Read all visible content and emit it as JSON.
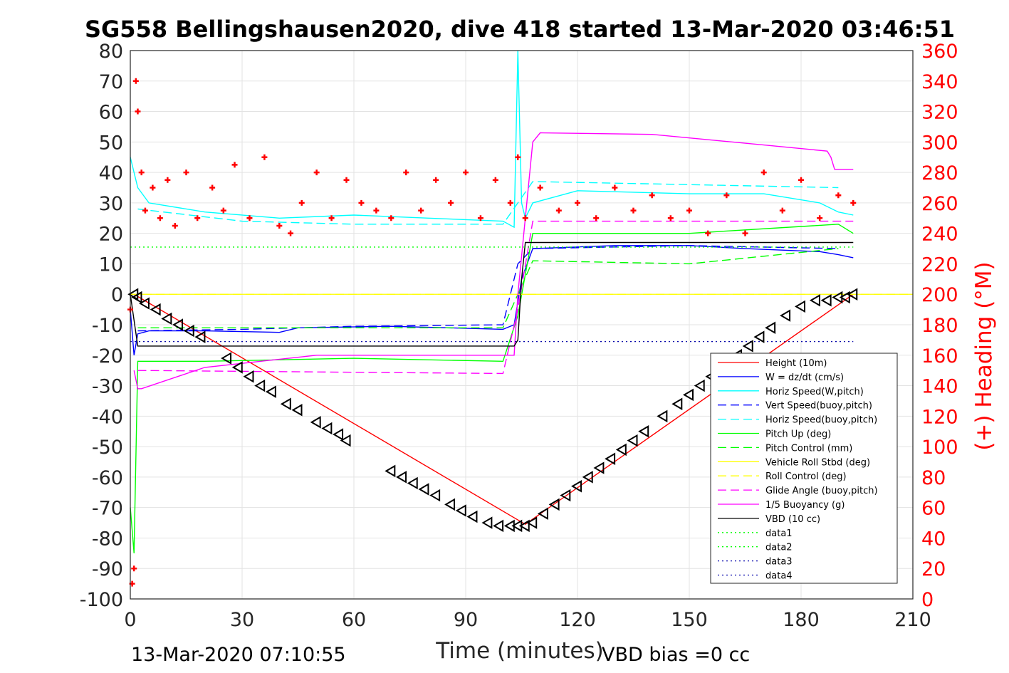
{
  "chart_data": {
    "type": "line",
    "title": "SG558 Bellingshausen2020, dive 418 started 13-Mar-2020 03:46:51",
    "xlabel": "Time (minutes)",
    "ylabel": "",
    "y2label": "(+) Heading (°M)",
    "xlim": [
      0,
      210
    ],
    "ylim": [
      -100,
      80
    ],
    "y2lim": [
      0,
      360
    ],
    "x_ticks": [
      "0",
      "30",
      "60",
      "90",
      "120",
      "150",
      "180",
      "210"
    ],
    "y_ticks": [
      "80",
      "70",
      "60",
      "50",
      "40",
      "30",
      "20",
      "10",
      "0",
      "-10",
      "-20",
      "-30",
      "-40",
      "-50",
      "-60",
      "-70",
      "-80",
      "-90",
      "-100"
    ],
    "y2_ticks": [
      "360",
      "340",
      "320",
      "300",
      "280",
      "260",
      "240",
      "220",
      "200",
      "180",
      "160",
      "140",
      "120",
      "100",
      "80",
      "60",
      "40",
      "20",
      "0"
    ],
    "grid": true,
    "legend_position": "bottom-right",
    "footer_left": "13-Mar-2020 07:10:55",
    "footer_right": "VBD bias =0 cc",
    "colors": {
      "height": "#ff0000",
      "w": "#0000ff",
      "horiz_w": "#00ffff",
      "pitch": "#00ff00",
      "roll": "#ffff00",
      "glide": "#ff00ff",
      "vbd": "#000000",
      "heading": "#ff0000",
      "data": "#00ff00",
      "data_blue": "#0000aa"
    },
    "legend": [
      {
        "label": "Height (10m)",
        "color": "#ff0000",
        "dash": ""
      },
      {
        "label": "W = dz/dt (cm/s)",
        "color": "#0000ff",
        "dash": ""
      },
      {
        "label": "Horiz Speed(W,pitch)",
        "color": "#00ffff",
        "dash": ""
      },
      {
        "label": "Vert Speed(buoy,pitch)",
        "color": "#0000ff",
        "dash": "12,6"
      },
      {
        "label": "Horiz Speed(buoy,pitch)",
        "color": "#00ffff",
        "dash": "12,6"
      },
      {
        "label": "Pitch Up (deg)",
        "color": "#00ff00",
        "dash": ""
      },
      {
        "label": "Pitch Control (mm)",
        "color": "#00ff00",
        "dash": "12,6"
      },
      {
        "label": "Vehicle Roll Stbd (deg)",
        "color": "#ffff00",
        "dash": ""
      },
      {
        "label": "Roll Control (deg)",
        "color": "#ffff00",
        "dash": "12,6"
      },
      {
        "label": "Glide Angle (buoy,pitch)",
        "color": "#ff00ff",
        "dash": "12,6"
      },
      {
        "label": "1/5 Buoyancy (g)",
        "color": "#ff00ff",
        "dash": ""
      },
      {
        "label": "VBD (10 cc)",
        "color": "#000000",
        "dash": ""
      },
      {
        "label": "data1",
        "color": "#00ff00",
        "dash": "2,4"
      },
      {
        "label": "data2",
        "color": "#00ff00",
        "dash": "2,4"
      },
      {
        "label": "data3",
        "color": "#0000aa",
        "dash": "2,4"
      },
      {
        "label": "data4",
        "color": "#0000aa",
        "dash": "2,4"
      }
    ],
    "series": [
      {
        "name": "Height (10m)",
        "x": [
          0,
          1,
          106,
          194
        ],
        "y": [
          0,
          0,
          -75.5,
          0
        ]
      },
      {
        "name": "W = dz/dt (cm/s)",
        "x": [
          0,
          1,
          2,
          5,
          20,
          40,
          45,
          70,
          100,
          103,
          105,
          108,
          130,
          150,
          165,
          185,
          190,
          194
        ],
        "y": [
          -5,
          -20,
          -13,
          -12,
          -12,
          -12.5,
          -11,
          -10.5,
          -11.5,
          -10,
          5,
          15,
          16,
          16,
          15,
          14,
          13,
          12
        ]
      },
      {
        "name": "Horiz Speed(W,pitch)",
        "x": [
          0,
          2,
          5,
          20,
          40,
          60,
          80,
          100,
          103,
          104,
          105,
          106,
          108,
          120,
          150,
          170,
          185,
          190,
          194
        ],
        "y": [
          45,
          35,
          30,
          27,
          25,
          26,
          25,
          24,
          22,
          80,
          30,
          25,
          30,
          34,
          33,
          33,
          30,
          27,
          26
        ]
      },
      {
        "name": "Vert Speed(buoy,pitch)",
        "x": [
          2,
          30,
          60,
          100,
          104,
          108,
          150,
          190
        ],
        "y": [
          -12,
          -11.5,
          -10.5,
          -10,
          10,
          15,
          16,
          15
        ]
      },
      {
        "name": "Horiz Speed(buoy,pitch)",
        "x": [
          2,
          30,
          60,
          100,
          104,
          108,
          150,
          190
        ],
        "y": [
          28,
          24,
          23,
          23,
          30,
          37,
          36,
          35
        ]
      },
      {
        "name": "Pitch Up (deg)",
        "x": [
          0,
          1,
          2,
          20,
          60,
          100,
          104,
          108,
          150,
          190,
          194
        ],
        "y": [
          -70,
          -85,
          -22,
          -22,
          -21,
          -22,
          -7,
          20,
          20,
          23,
          20
        ]
      },
      {
        "name": "Pitch Control (mm)",
        "x": [
          2,
          100,
          104,
          108,
          150,
          190
        ],
        "y": [
          -11,
          -11,
          0,
          11,
          10,
          15
        ]
      },
      {
        "name": "Vehicle Roll Stbd (deg)",
        "x": [
          0,
          210
        ],
        "y": [
          0,
          0
        ]
      },
      {
        "name": "Roll Control (deg)",
        "x": [
          0,
          210
        ],
        "y": [
          0,
          0
        ]
      },
      {
        "name": "Glide Angle (buoy,pitch)",
        "x": [
          2,
          100,
          104,
          108,
          150,
          190,
          194
        ],
        "y": [
          -25,
          -26,
          -5,
          24,
          24,
          24,
          24
        ]
      },
      {
        "name": "1/5 Buoyancy (g)",
        "x": [
          1,
          2,
          3,
          20,
          50,
          100,
          103,
          104,
          108,
          110,
          140,
          170,
          187,
          188,
          189,
          194
        ],
        "y": [
          -25,
          -31,
          -31,
          -24,
          -20,
          -20,
          -20,
          0,
          50,
          53,
          52.5,
          49,
          47,
          45,
          41,
          41
        ]
      },
      {
        "name": "VBD (10 cc)",
        "x": [
          0,
          2,
          103,
          104,
          105,
          106,
          194
        ],
        "y": [
          0,
          -17,
          -17,
          -15,
          5,
          17,
          17
        ]
      },
      {
        "name": "data2",
        "x": [
          0,
          194
        ],
        "y": [
          15.5,
          15.5
        ]
      },
      {
        "name": "data4",
        "x": [
          0,
          194
        ],
        "y": [
          -15.5,
          -15.5
        ]
      }
    ],
    "heading_points": {
      "name": "(+) Heading (°M)",
      "x": [
        0,
        0.5,
        1,
        1.5,
        2,
        3,
        4,
        6,
        8,
        10,
        12,
        15,
        18,
        22,
        25,
        28,
        32,
        36,
        40,
        43,
        46,
        50,
        54,
        58,
        62,
        66,
        70,
        74,
        78,
        82,
        86,
        90,
        94,
        98,
        102,
        104,
        106,
        110,
        115,
        120,
        125,
        130,
        135,
        140,
        145,
        150,
        155,
        160,
        165,
        170,
        175,
        180,
        185,
        190,
        194
      ],
      "y": [
        190,
        10,
        20,
        340,
        320,
        280,
        255,
        270,
        250,
        275,
        245,
        280,
        250,
        270,
        255,
        285,
        250,
        290,
        245,
        240,
        260,
        280,
        250,
        275,
        260,
        255,
        250,
        280,
        255,
        275,
        260,
        280,
        250,
        275,
        260,
        290,
        250,
        270,
        255,
        260,
        250,
        270,
        255,
        265,
        250,
        255,
        240,
        265,
        240,
        280,
        255,
        275,
        250,
        265,
        260
      ]
    },
    "vbd_markers": {
      "x": [
        1,
        2,
        4,
        7,
        10,
        13,
        16,
        19,
        26,
        29,
        32,
        35,
        38,
        42,
        45,
        50,
        53,
        56,
        58,
        70,
        73,
        76,
        79,
        82,
        86,
        89,
        92,
        96,
        99,
        102,
        104,
        106,
        108,
        111,
        114,
        117,
        120,
        123,
        126,
        129,
        132,
        135,
        138,
        143,
        147,
        150,
        153,
        156,
        159,
        163,
        166,
        169,
        172,
        176,
        180,
        184,
        187,
        190,
        192,
        194
      ],
      "y": [
        0,
        -1,
        -3,
        -5,
        -8,
        -10,
        -12,
        -14,
        -21,
        -24,
        -27,
        -30,
        -32,
        -36,
        -38,
        -42,
        -44,
        -46,
        -48,
        -58,
        -60,
        -62,
        -64,
        -66,
        -69,
        -71,
        -73,
        -75,
        -76,
        -76,
        -76,
        -76,
        -75,
        -72,
        -69,
        -66,
        -63,
        -60,
        -57,
        -54,
        -51,
        -48,
        -45,
        -40,
        -36,
        -33,
        -30,
        -27,
        -24,
        -20,
        -17,
        -14,
        -11,
        -7,
        -4,
        -2,
        -2,
        -1,
        -1,
        0
      ]
    }
  }
}
